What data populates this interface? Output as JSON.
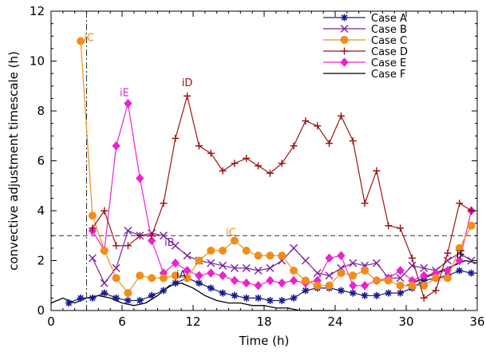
{
  "chart_data": {
    "type": "line",
    "xlabel": "Time (h)",
    "ylabel": "convective adjustment timescale (h)",
    "xlim": [
      0,
      36
    ],
    "ylim": [
      0,
      12
    ],
    "xticks": [
      0,
      6,
      12,
      18,
      24,
      30,
      36
    ],
    "yticks": [
      0,
      2,
      4,
      6,
      8,
      10,
      12
    ],
    "legend_position": "top-right",
    "reference_lines": [
      {
        "orientation": "horizontal",
        "value": 3,
        "style": "dashed"
      },
      {
        "orientation": "vertical",
        "value": 3,
        "style": "dash-dot"
      }
    ],
    "series": [
      {
        "name": "Case A",
        "color": "#1a1a8c",
        "marker": "asterisk",
        "x": [
          1.5,
          2.5,
          3.5,
          4.5,
          5.5,
          6.5,
          7.5,
          8.5,
          9.5,
          10.5,
          11.5,
          12.5,
          13.5,
          14.5,
          15.5,
          16.5,
          17.5,
          18.5,
          19.5,
          20.5,
          21.5,
          22.5,
          23.5,
          24.5,
          25.5,
          26.5,
          27.5,
          28.5,
          29.5,
          30.5,
          31.5,
          32.5,
          33.5,
          34.5,
          35.5
        ],
        "y": [
          0.3,
          0.5,
          0.5,
          0.7,
          0.5,
          0.4,
          0.4,
          0.6,
          0.8,
          1.1,
          1.3,
          1.1,
          0.9,
          0.7,
          0.6,
          0.5,
          0.5,
          0.4,
          0.4,
          0.5,
          0.8,
          0.9,
          0.9,
          0.8,
          0.7,
          0.6,
          0.6,
          0.7,
          0.7,
          0.9,
          1.2,
          1.3,
          1.4,
          1.6,
          1.5
        ]
      },
      {
        "name": "Case B",
        "color": "#7a1fa2",
        "marker": "x",
        "x": [
          3.5,
          4.5,
          5.5,
          6.5,
          7.5,
          8.5,
          9.5,
          10.5,
          11.5,
          12.5,
          13.5,
          14.5,
          15.5,
          16.5,
          17.5,
          18.5,
          19.5,
          20.5,
          21.5,
          22.5,
          23.5,
          24.5,
          25.5,
          26.5,
          27.5,
          28.5,
          29.5,
          30.5,
          31.5,
          32.5,
          33.5,
          34.5,
          35.5
        ],
        "y": [
          2.1,
          1.1,
          1.7,
          3.2,
          3.0,
          3.1,
          3.0,
          2.6,
          2.2,
          2.0,
          1.9,
          1.8,
          1.7,
          1.7,
          1.6,
          1.7,
          2.0,
          2.5,
          2.0,
          1.5,
          1.4,
          1.7,
          1.9,
          1.8,
          1.9,
          1.3,
          1.3,
          1.8,
          1.7,
          1.6,
          2.0,
          2.3,
          2.0
        ]
      },
      {
        "name": "Case C",
        "color": "#f28c1a",
        "marker": "circle",
        "x": [
          2.5,
          3.5,
          4.5,
          5.5,
          6.5,
          7.5,
          8.5,
          9.5,
          10.5,
          11.5,
          12.5,
          13.5,
          14.5,
          15.5,
          16.5,
          17.5,
          18.5,
          19.5,
          20.5,
          21.5,
          22.5,
          23.5,
          24.5,
          25.5,
          26.5,
          27.5,
          28.5,
          29.5,
          30.5,
          31.5,
          32.5,
          33.5,
          34.5,
          35.5
        ],
        "y": [
          10.8,
          3.8,
          2.4,
          1.3,
          0.7,
          1.4,
          1.3,
          1.3,
          1.4,
          1.3,
          2.0,
          2.4,
          2.4,
          2.8,
          2.4,
          2.2,
          2.2,
          2.2,
          1.6,
          1.2,
          1.0,
          1.0,
          1.5,
          1.4,
          1.6,
          1.2,
          1.2,
          1.0,
          1.0,
          1.0,
          1.3,
          1.3,
          2.5,
          3.4
        ]
      },
      {
        "name": "Case D",
        "color": "#9e1414",
        "marker": "plus",
        "x": [
          3.5,
          4.5,
          5.5,
          6.5,
          7.5,
          8.5,
          9.5,
          10.5,
          11.5,
          12.5,
          13.5,
          14.5,
          15.5,
          16.5,
          17.5,
          18.5,
          19.5,
          20.5,
          21.5,
          22.5,
          23.5,
          24.5,
          25.5,
          26.5,
          27.5,
          28.5,
          29.5,
          30.5,
          31.5,
          32.5,
          33.5,
          34.5,
          35.5
        ],
        "y": [
          3.3,
          4.0,
          2.6,
          2.6,
          3.0,
          3.0,
          4.3,
          6.9,
          8.6,
          6.6,
          6.3,
          5.6,
          5.9,
          6.1,
          5.8,
          5.5,
          5.9,
          6.6,
          7.6,
          7.4,
          6.7,
          7.8,
          6.8,
          4.3,
          5.6,
          3.4,
          3.3,
          2.1,
          0.5,
          0.8,
          2.3,
          4.3,
          4.0
        ]
      },
      {
        "name": "Case E",
        "color": "#ee22cc",
        "marker": "diamond",
        "x": [
          3.5,
          4.5,
          5.5,
          6.5,
          7.5,
          8.5,
          9.5,
          10.5,
          11.5,
          12.5,
          13.5,
          14.5,
          15.5,
          16.5,
          17.5,
          18.5,
          19.5,
          20.5,
          21.5,
          22.5,
          23.5,
          24.5,
          25.5,
          26.5,
          27.5,
          28.5,
          29.5,
          30.5,
          31.5,
          32.5,
          33.5,
          34.5,
          35.5
        ],
        "y": [
          3.2,
          2.4,
          6.6,
          8.3,
          5.3,
          2.8,
          1.5,
          1.9,
          1.6,
          1.4,
          1.5,
          1.4,
          1.2,
          1.1,
          1.0,
          1.2,
          1.1,
          1.2,
          1.1,
          1.2,
          2.1,
          2.2,
          1.0,
          1.0,
          1.2,
          1.3,
          1.6,
          1.2,
          1.4,
          1.5,
          1.6,
          2.0,
          4.0
        ]
      },
      {
        "name": "Case F",
        "color": "#000000",
        "marker": "none",
        "x": [
          0,
          1,
          2,
          3,
          4,
          5,
          6,
          7,
          8,
          9,
          10,
          11,
          12,
          13,
          14,
          15,
          16,
          17,
          18,
          19,
          20,
          21,
          22,
          23,
          24,
          25,
          26,
          27,
          28,
          29,
          30,
          31,
          32,
          33,
          34,
          35,
          36
        ],
        "y": [
          0.3,
          0.5,
          0.3,
          0.5,
          0.6,
          0.5,
          0.3,
          0.2,
          0.3,
          0.6,
          1.0,
          1.1,
          0.9,
          0.6,
          0.4,
          0.3,
          0.3,
          0.2,
          0.2,
          0.1,
          0.1,
          0.0,
          0.0,
          0.0,
          0.0,
          null,
          null,
          null,
          null,
          null,
          1.0,
          1.2,
          1.4,
          1.6,
          1.8,
          2.0,
          1.9
        ]
      }
    ],
    "annotations": [
      {
        "text": "iC",
        "x": 3.2,
        "y": 10.8,
        "color": "#f28c1a"
      },
      {
        "text": "iE",
        "x": 6.2,
        "y": 8.6,
        "color": "#ee22cc"
      },
      {
        "text": "iD",
        "x": 11.5,
        "y": 9.0,
        "color": "#9e1414"
      },
      {
        "text": "iB",
        "x": 10.0,
        "y": 2.6,
        "color": "#7a1fa2"
      },
      {
        "text": "iC",
        "x": 15.2,
        "y": 3.0,
        "color": "#f28c1a"
      },
      {
        "text": "iA",
        "x": 11.0,
        "y": 1.3,
        "color": "#1a1a8c"
      },
      {
        "text": "iF",
        "x": 34.6,
        "y": 2.1,
        "color": "#000000"
      }
    ]
  }
}
